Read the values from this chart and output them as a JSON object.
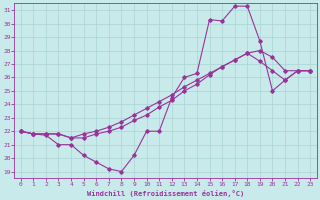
{
  "xlabel": "Windchill (Refroidissement éolien,°C)",
  "xlim": [
    -0.5,
    23.5
  ],
  "ylim": [
    18.5,
    31.5
  ],
  "xticks": [
    0,
    1,
    2,
    3,
    4,
    5,
    6,
    7,
    8,
    9,
    10,
    11,
    12,
    13,
    14,
    15,
    16,
    17,
    18,
    19,
    20,
    21,
    22,
    23
  ],
  "yticks": [
    19,
    20,
    21,
    22,
    23,
    24,
    25,
    26,
    27,
    28,
    29,
    30,
    31
  ],
  "bg_color": "#c8eaea",
  "grid_color": "#aad4d4",
  "line_color": "#993399",
  "line1_x": [
    0,
    1,
    2,
    3,
    4,
    5,
    6,
    7,
    8,
    9,
    10,
    11,
    12,
    13,
    14,
    15,
    16,
    17,
    18,
    19,
    20,
    21,
    22,
    23
  ],
  "line1_y": [
    22.0,
    21.8,
    21.7,
    21.0,
    21.0,
    20.2,
    19.7,
    19.2,
    19.0,
    20.2,
    22.0,
    22.0,
    24.5,
    26.0,
    26.3,
    30.3,
    30.2,
    31.3,
    31.3,
    28.7,
    25.0,
    25.8,
    26.5,
    26.5
  ],
  "line2_x": [
    0,
    1,
    2,
    3,
    4,
    5,
    6,
    7,
    8,
    9,
    10,
    11,
    12,
    13,
    14,
    15,
    16,
    17,
    18,
    19,
    20,
    21,
    22,
    23
  ],
  "line2_y": [
    22.0,
    21.8,
    21.8,
    21.8,
    21.5,
    21.5,
    21.8,
    22.0,
    22.3,
    22.8,
    23.2,
    23.8,
    24.3,
    25.0,
    25.5,
    26.2,
    26.8,
    27.3,
    27.8,
    27.2,
    26.5,
    25.8,
    26.5,
    26.5
  ],
  "line3_x": [
    0,
    1,
    2,
    3,
    4,
    5,
    6,
    7,
    8,
    9,
    10,
    11,
    12,
    13,
    14,
    15,
    16,
    17,
    18,
    19,
    20,
    21,
    22,
    23
  ],
  "line3_y": [
    22.0,
    21.8,
    21.8,
    21.8,
    21.5,
    21.8,
    22.0,
    22.3,
    22.7,
    23.2,
    23.7,
    24.2,
    24.7,
    25.3,
    25.8,
    26.3,
    26.8,
    27.3,
    27.8,
    28.0,
    27.5,
    26.5,
    26.5,
    26.5
  ]
}
